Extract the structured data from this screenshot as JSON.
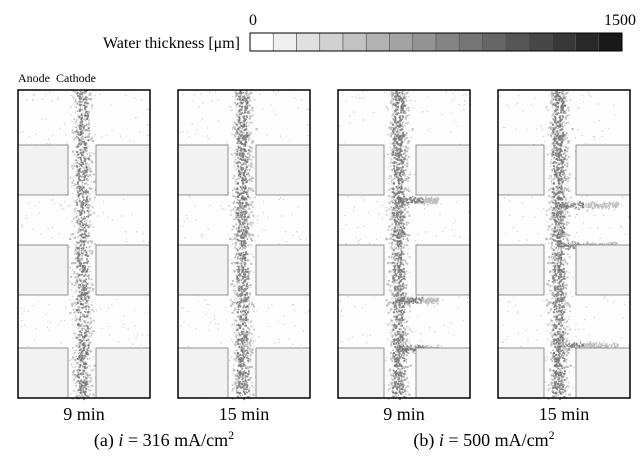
{
  "colorbar": {
    "label": "Water thickness [μm]",
    "min": 0,
    "max": 1500
  },
  "electrode_labels": [
    "Anode",
    "Cathode"
  ],
  "panels": [
    {
      "time": "9 min"
    },
    {
      "time": "15 min"
    },
    {
      "time": "9 min"
    },
    {
      "time": "15 min"
    }
  ],
  "captions": [
    {
      "prefix": "(a)",
      "variable": "i",
      "value": "= 316 mA/cm",
      "sup": "2"
    },
    {
      "prefix": "(b)",
      "variable": "i",
      "value": "= 500 mA/cm",
      "sup": "2"
    }
  ]
}
